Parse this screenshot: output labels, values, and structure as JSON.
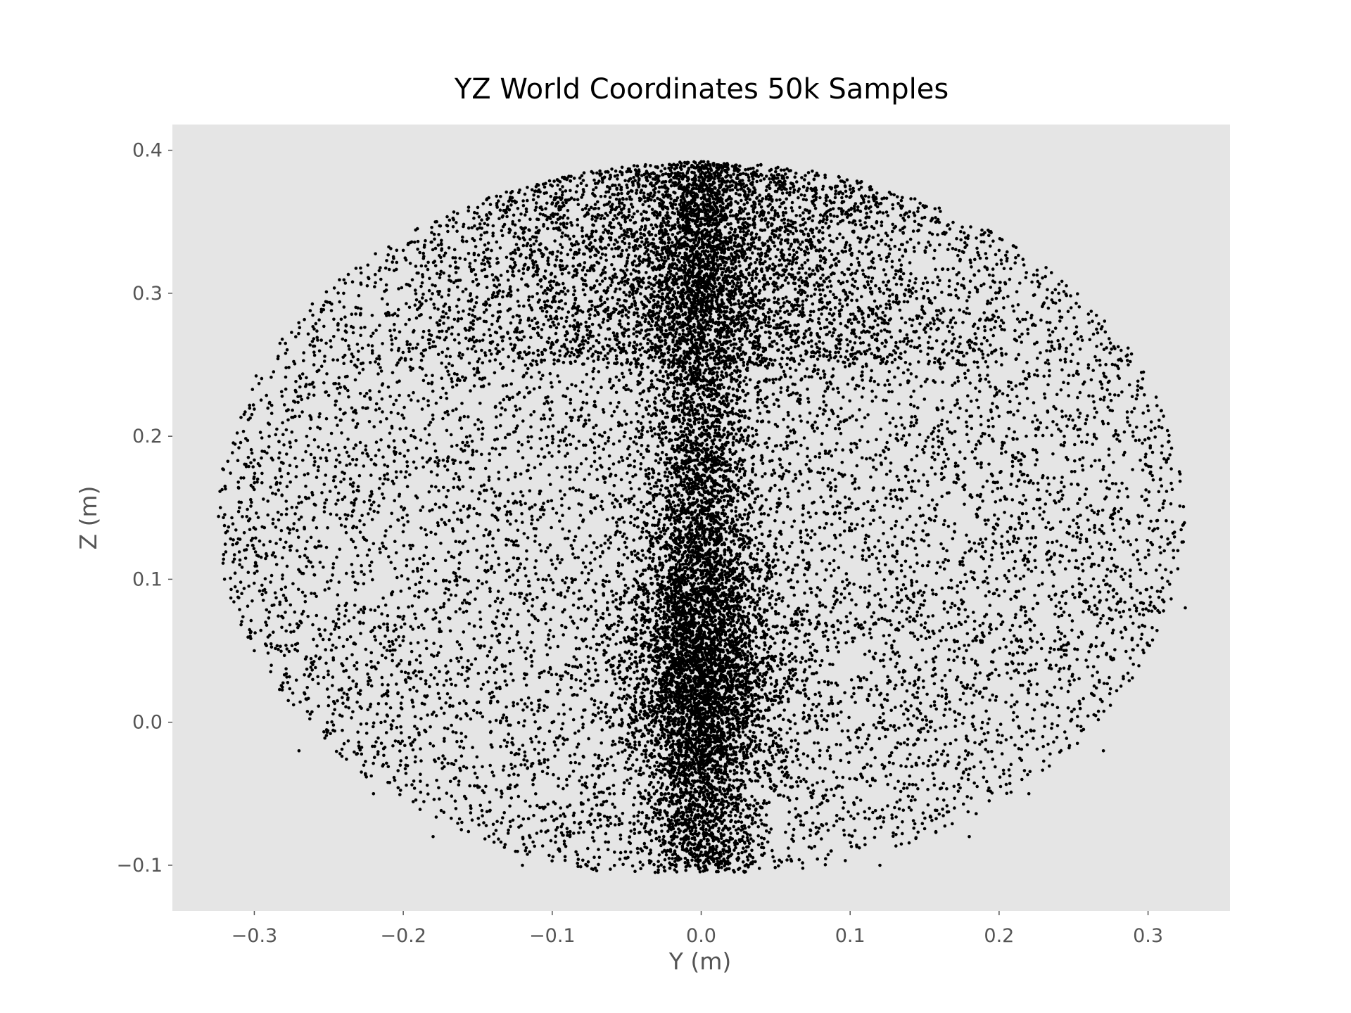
{
  "chart_data": {
    "type": "scatter",
    "title": "YZ World Coordinates 50k Samples",
    "xlabel": "Y (m)",
    "ylabel": "Z (m)",
    "xlim": [
      -0.355,
      0.355
    ],
    "ylim": [
      -0.132,
      0.418
    ],
    "x_ticks": [
      -0.3,
      -0.2,
      -0.1,
      0.0,
      0.1,
      0.2,
      0.3
    ],
    "x_tick_labels": [
      "−0.3",
      "−0.2",
      "−0.1",
      "0.0",
      "0.1",
      "0.2",
      "0.3"
    ],
    "y_ticks": [
      -0.1,
      0.0,
      0.1,
      0.2,
      0.3,
      0.4
    ],
    "y_tick_labels": [
      "−0.1",
      "0.0",
      "0.1",
      "0.2",
      "0.3",
      "0.4"
    ],
    "grid": false,
    "legend": "none",
    "colors": {
      "axes_background": "#e5e5e5",
      "points": "#000000",
      "tick_text": "#555555"
    },
    "point_cloud": {
      "sample_count": 50000,
      "y_range": [
        -0.325,
        0.325
      ],
      "z_range": [
        -0.11,
        0.392
      ],
      "dense_core_y": 0.0,
      "dense_core_z": 0.04
    },
    "series": [
      {
        "values": [
          [
            -0.32,
            0.1
          ],
          [
            -0.31,
            0.15
          ],
          [
            -0.3,
            0.05
          ],
          [
            -0.29,
            0.2
          ],
          [
            -0.27,
            -0.02
          ],
          [
            -0.26,
            0.25
          ],
          [
            -0.24,
            0.3
          ],
          [
            -0.22,
            -0.05
          ],
          [
            -0.2,
            0.33
          ],
          [
            -0.18,
            -0.08
          ],
          [
            -0.15,
            0.36
          ],
          [
            -0.12,
            -0.1
          ],
          [
            -0.1,
            0.375
          ],
          [
            -0.05,
            0.385
          ],
          [
            0.0,
            0.392
          ],
          [
            0.0,
            0.04
          ],
          [
            0.0,
            0.0
          ],
          [
            0.0,
            0.2
          ],
          [
            0.05,
            0.385
          ],
          [
            0.1,
            0.375
          ],
          [
            0.12,
            -0.1
          ],
          [
            0.15,
            0.36
          ],
          [
            0.18,
            -0.08
          ],
          [
            0.2,
            0.33
          ],
          [
            0.22,
            -0.05
          ],
          [
            0.24,
            0.3
          ],
          [
            0.26,
            0.25
          ],
          [
            0.27,
            -0.02
          ],
          [
            0.29,
            0.2
          ],
          [
            0.31,
            0.15
          ],
          [
            0.32,
            0.12
          ],
          [
            0.325,
            0.08
          ]
        ]
      }
    ]
  }
}
